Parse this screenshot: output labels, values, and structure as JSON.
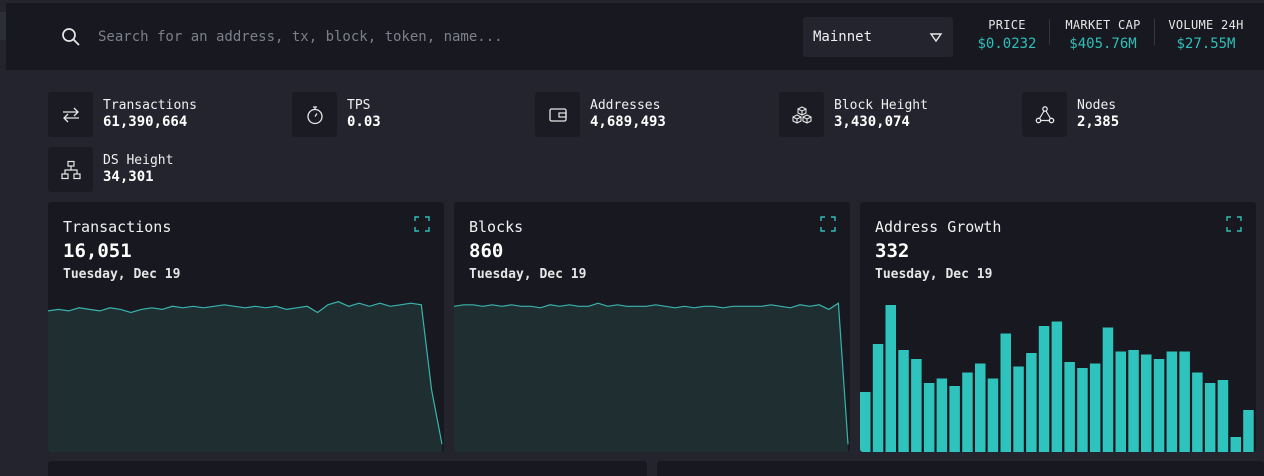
{
  "search": {
    "placeholder": "Search for an address, tx, block, token, name..."
  },
  "network": {
    "selected": "Mainnet"
  },
  "market": [
    {
      "label": "PRICE",
      "value": "$0.0232"
    },
    {
      "label": "MARKET CAP",
      "value": "$405.76M"
    },
    {
      "label": "VOLUME 24H",
      "value": "$27.55M"
    }
  ],
  "metrics": [
    {
      "name": "Transactions",
      "value": "61,390,664",
      "icon": "transfer-arrows-icon"
    },
    {
      "name": "TPS",
      "value": "0.03",
      "icon": "stopwatch-icon"
    },
    {
      "name": "Addresses",
      "value": "4,689,493",
      "icon": "wallet-icon"
    },
    {
      "name": "Block Height",
      "value": "3,430,074",
      "icon": "cubes-icon"
    },
    {
      "name": "Nodes",
      "value": "2,385",
      "icon": "network-nodes-icon"
    },
    {
      "name": "DS Height",
      "value": "34,301",
      "icon": "hierarchy-icon"
    }
  ],
  "cards": [
    {
      "title": "Transactions",
      "value": "16,051",
      "date": "Tuesday, Dec 19"
    },
    {
      "title": "Blocks",
      "value": "860",
      "date": "Tuesday, Dec 19"
    },
    {
      "title": "Address Growth",
      "value": "332",
      "date": "Tuesday, Dec 19"
    }
  ],
  "colors": {
    "accent": "#2fbfb8",
    "bar": "#2ec4bd",
    "area_fill": "#1f2e31",
    "line": "#39b3ad"
  },
  "chart_data": [
    {
      "type": "area",
      "y": [
        91,
        92,
        91,
        93,
        92,
        91,
        93,
        92,
        90,
        92,
        93,
        92,
        94,
        93,
        94,
        93,
        94,
        95,
        94,
        93,
        94,
        93,
        94,
        92,
        93,
        94,
        90,
        95,
        97,
        94,
        96,
        94,
        96,
        94,
        95,
        96,
        95,
        40,
        5
      ]
    },
    {
      "type": "area",
      "y": [
        94,
        95,
        95,
        94,
        95,
        94,
        95,
        94,
        94,
        93,
        95,
        94,
        95,
        94,
        94,
        96,
        94,
        95,
        94,
        94,
        94,
        95,
        94,
        93,
        94,
        93,
        94,
        94,
        93,
        94,
        94,
        94,
        94,
        95,
        94,
        93,
        95,
        94,
        95,
        92,
        96,
        5
      ]
    },
    {
      "type": "bar",
      "values": [
        40,
        72,
        98,
        68,
        62,
        46,
        49,
        44,
        53,
        59,
        49,
        79,
        57,
        66,
        84,
        87,
        60,
        56,
        59,
        83,
        67,
        68,
        65,
        62,
        67,
        67,
        53,
        46,
        48,
        10,
        28
      ]
    }
  ]
}
